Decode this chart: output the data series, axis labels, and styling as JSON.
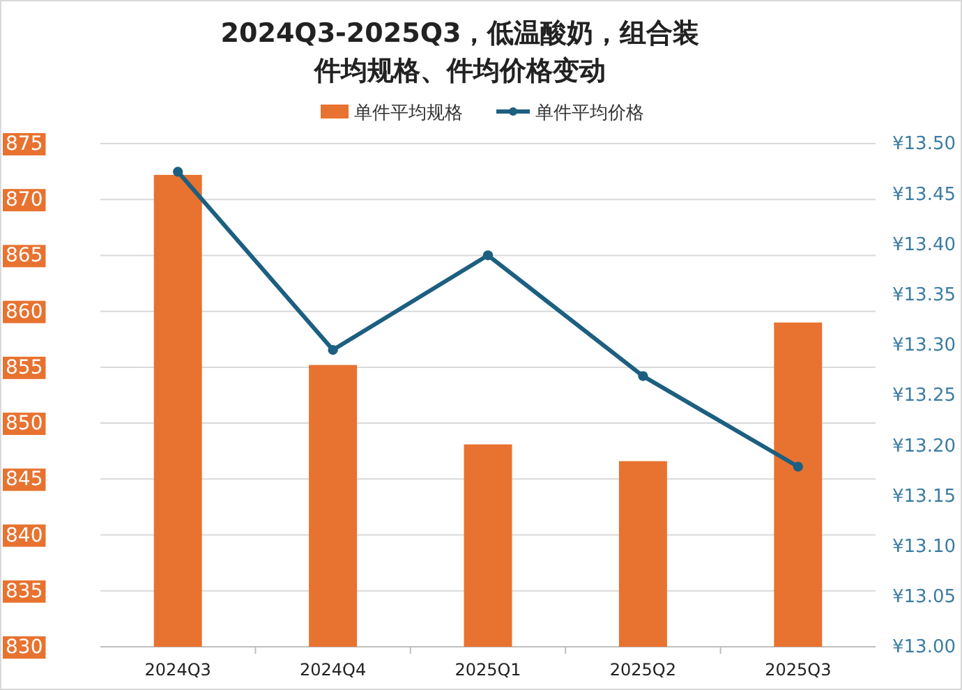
{
  "chart_data": {
    "type": "bar",
    "title": "2024Q3-2025Q3，低温酸奶，组合装",
    "subtitle": "件均规格、件均价格变动",
    "categories": [
      "2024Q3",
      "2024Q4",
      "2025Q1",
      "2025Q2",
      "2025Q3"
    ],
    "series": [
      {
        "name": "单件平均规格",
        "color": "#e8722f",
        "values": [
          872.2,
          855.2,
          848.1,
          846.6,
          859.0
        ]
      },
      {
        "name": "单件平均价格",
        "type": "line",
        "axis": "y2",
        "color": "#1c5f80",
        "values": [
          13.472,
          13.295,
          13.389,
          13.269,
          13.179
        ]
      }
    ],
    "ylim": [
      830,
      875
    ],
    "yticks": [
      830,
      835,
      840,
      845,
      850,
      855,
      860,
      865,
      870,
      875
    ],
    "y2lim": [
      13.0,
      13.5
    ],
    "y2ticks": [
      {
        "value": 13.0,
        "label": "¥13.00"
      },
      {
        "value": 13.05,
        "label": "¥13.05"
      },
      {
        "value": 13.1,
        "label": "¥13.10"
      },
      {
        "value": 13.15,
        "label": "¥13.15"
      },
      {
        "value": 13.2,
        "label": "¥13.20"
      },
      {
        "value": 13.25,
        "label": "¥13.25"
      },
      {
        "value": 13.3,
        "label": "¥13.30"
      },
      {
        "value": 13.35,
        "label": "¥13.35"
      },
      {
        "value": 13.4,
        "label": "¥13.40"
      },
      {
        "value": 13.45,
        "label": "¥13.45"
      },
      {
        "value": 13.5,
        "label": "¥13.50"
      }
    ],
    "grid": "y",
    "legend": "top",
    "marker": "circle",
    "line_style": "solid"
  }
}
